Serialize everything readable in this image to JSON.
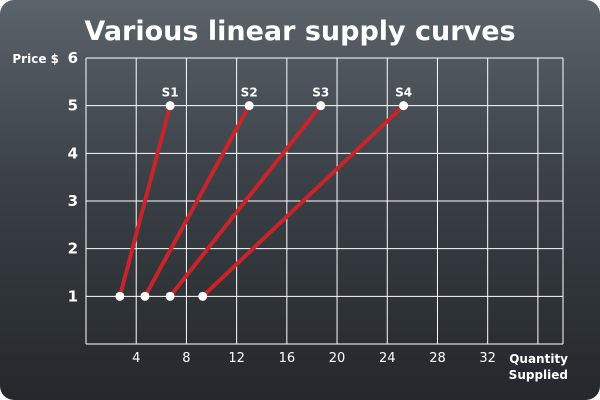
{
  "chart_data": {
    "type": "line",
    "title": "Various linear supply curves",
    "ylabel": "Price $",
    "xlabel": [
      "Quantity",
      "Supplied"
    ],
    "xlim": [
      0,
      38
    ],
    "ylim": [
      0,
      6
    ],
    "xticks": [
      4,
      8,
      12,
      16,
      20,
      24,
      28,
      32
    ],
    "yticks": [
      1,
      2,
      3,
      4,
      5,
      6
    ],
    "grid": true,
    "colors": {
      "line": "#c8242a",
      "grid": "#ffffff",
      "point": "#ffffff"
    },
    "series": [
      {
        "name": "S1",
        "points": [
          [
            2.7,
            1
          ],
          [
            6.7,
            5
          ]
        ]
      },
      {
        "name": "S2",
        "points": [
          [
            4.7,
            1
          ],
          [
            13.0,
            5
          ]
        ]
      },
      {
        "name": "S3",
        "points": [
          [
            6.7,
            1
          ],
          [
            18.7,
            5
          ]
        ]
      },
      {
        "name": "S4",
        "points": [
          [
            9.3,
            1
          ],
          [
            25.3,
            5
          ]
        ]
      }
    ]
  }
}
